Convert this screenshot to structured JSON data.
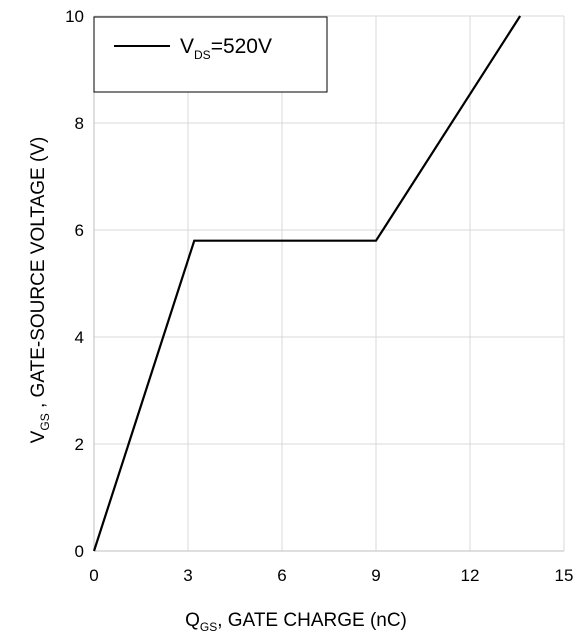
{
  "chart_data": {
    "type": "line",
    "series": [
      {
        "name": "VDS=520V",
        "legend_main": "V",
        "legend_sub": "DS",
        "legend_rest": "=520V",
        "x": [
          0,
          3.2,
          9.0,
          13.6
        ],
        "y": [
          0,
          5.8,
          5.8,
          10.0
        ],
        "color": "#000000"
      }
    ],
    "xlim": [
      0,
      15
    ],
    "ylim": [
      0,
      10
    ],
    "xticks": [
      0,
      3,
      6,
      9,
      12,
      15
    ],
    "yticks": [
      0,
      2,
      4,
      6,
      8,
      10
    ],
    "xlabel": {
      "main": "Q",
      "sub": "GS",
      "rest": ", GATE CHARGE (nC)"
    },
    "ylabel": {
      "main": "V",
      "sub": "GS",
      "rest": " , GATE-SOURCE  VOLTAGE (V)"
    },
    "grid": true,
    "legend_position": "top-left"
  }
}
